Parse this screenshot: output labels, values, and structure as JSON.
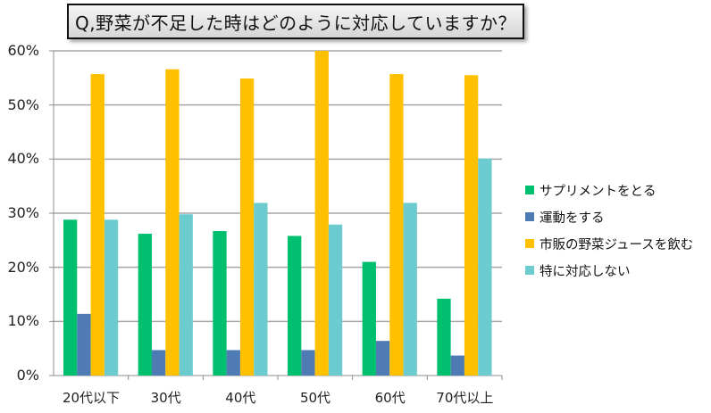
{
  "chart_data": {
    "type": "bar",
    "title": "Q,野菜が不足した時はどのように対応していますか？",
    "xlabel": "",
    "ylabel": "",
    "ylim": [
      0,
      60
    ],
    "yticks": [
      "0%",
      "10%",
      "20%",
      "30%",
      "40%",
      "50%",
      "60%"
    ],
    "grid": true,
    "legend_position": "right",
    "categories": [
      "20代以下",
      "30代",
      "40代",
      "50代",
      "60代",
      "70代以上"
    ],
    "series": [
      {
        "name": "サプリメントをとる",
        "color": "#00BF6F",
        "values": [
          28.8,
          26.2,
          26.7,
          25.8,
          21.0,
          14.2
        ]
      },
      {
        "name": "運動をする",
        "color": "#4F7BB5",
        "values": [
          11.4,
          4.7,
          4.7,
          4.7,
          6.4,
          3.7
        ]
      },
      {
        "name": "市販の野菜ジュースを飲む",
        "color": "#FFC000",
        "values": [
          55.7,
          56.6,
          54.9,
          60.0,
          55.7,
          55.5
        ]
      },
      {
        "name": "特に対応しない",
        "color": "#6CCBCF",
        "values": [
          28.8,
          29.8,
          31.9,
          27.9,
          31.9,
          40.1
        ]
      }
    ]
  },
  "colors": {
    "gridline": "#A6A6A6",
    "axis": "#8C8C8C"
  }
}
